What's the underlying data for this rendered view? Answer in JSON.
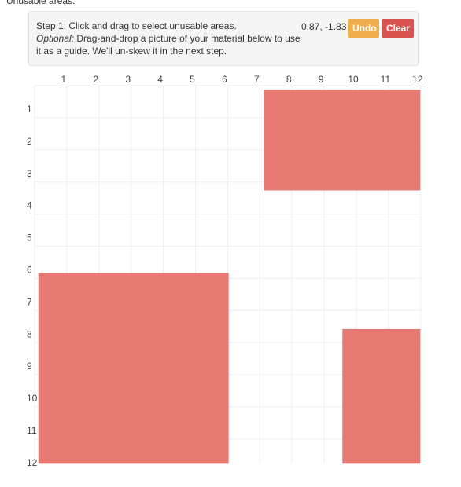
{
  "section_heading": "Unusable areas:",
  "instructions": {
    "step_text": "Step 1: Click and drag to select unusable areas.",
    "optional_label": "Optional:",
    "optional_text": " Drag-and-drop a picture of your material below to use it as a guide. We'll un-skew it in the next step."
  },
  "coordinate_readout": "0.87, -1.83",
  "toolbar": {
    "undo_label": "Undo",
    "clear_label": "Clear"
  },
  "colors": {
    "undo": "#f0ad4e",
    "clear": "#d9534f",
    "area_fill": "#e77b74"
  },
  "grid": {
    "columns": [
      "1",
      "2",
      "3",
      "4",
      "5",
      "6",
      "7",
      "8",
      "9",
      "10",
      "11",
      "12"
    ],
    "rows": [
      "1",
      "2",
      "3",
      "4",
      "5",
      "6",
      "7",
      "8",
      "9",
      "10",
      "11",
      "12"
    ]
  },
  "unusable_areas": [
    {
      "col_start": 7.05,
      "col_end": 12.0,
      "row_start": 0.6,
      "row_end": 3.5
    },
    {
      "col_start": 0.05,
      "col_end": 5.95,
      "row_start": 6.3,
      "row_end": 12.5
    },
    {
      "col_start": 9.5,
      "col_end": 12.0,
      "row_start": 8.05,
      "row_end": 12.5
    }
  ]
}
